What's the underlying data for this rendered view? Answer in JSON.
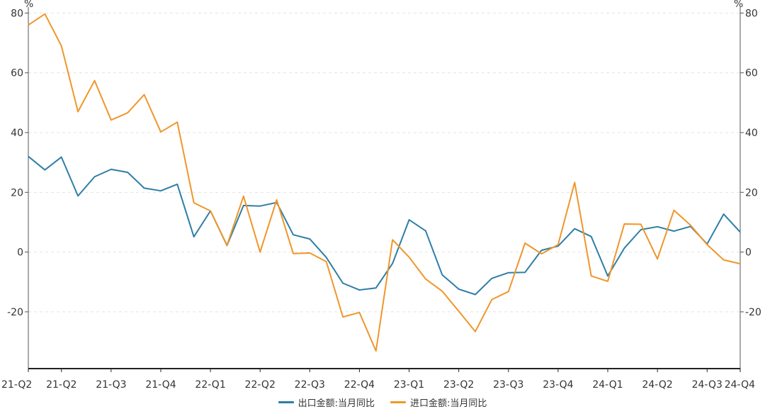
{
  "chart_data": {
    "type": "line",
    "unit_left": "%",
    "unit_right": "%",
    "x_tick_labels": [
      "21-Q2",
      "21-Q2",
      "21-Q3",
      "21-Q4",
      "22-Q1",
      "22-Q2",
      "22-Q3",
      "22-Q4",
      "23-Q1",
      "23-Q2",
      "23-Q3",
      "23-Q4",
      "24-Q1",
      "24-Q2",
      "24-Q3",
      "24-Q4"
    ],
    "x_tick_index": [
      0,
      2,
      5,
      8,
      11,
      14,
      17,
      20,
      23,
      26,
      29,
      32,
      35,
      38,
      41,
      43
    ],
    "ylim": [
      -39,
      82
    ],
    "y_ticks": [
      -20,
      0,
      20,
      40,
      60,
      80
    ],
    "grid": true,
    "legend_position": "bottom",
    "series": [
      {
        "name": "出口金额:当月同比",
        "color": "#2e7ea6",
        "values": [
          32.0,
          27.5,
          31.8,
          18.8,
          25.2,
          27.7,
          26.7,
          21.4,
          20.5,
          22.7,
          5.1,
          13.8,
          2.2,
          15.6,
          15.4,
          16.6,
          5.8,
          4.4,
          -1.8,
          -10.4,
          -12.7,
          -12.0,
          -3.8,
          10.8,
          7.1,
          -7.6,
          -12.4,
          -14.2,
          -8.8,
          -6.9,
          -6.8,
          0.6,
          2.0,
          7.8,
          5.2,
          -8.0,
          1.3,
          7.5,
          8.5,
          7.0,
          8.6,
          2.7,
          12.7,
          6.7
        ]
      },
      {
        "name": "进口金额:当月同比",
        "color": "#f0962a",
        "values": [
          76.0,
          79.7,
          69.0,
          47.0,
          57.4,
          44.2,
          46.6,
          52.7,
          40.2,
          43.5,
          16.5,
          13.8,
          2.3,
          18.7,
          0.0,
          17.5,
          -0.5,
          -0.3,
          -3.2,
          -21.7,
          -20.2,
          -33.1,
          4.1,
          -1.7,
          -9.0,
          -13.1,
          -19.8,
          -26.6,
          -15.9,
          -13.2,
          3.0,
          -0.6,
          2.5,
          23.3,
          -8.0,
          -9.8,
          9.4,
          9.3,
          -2.3,
          14.0,
          9.0,
          2.5,
          -2.6,
          -3.9
        ]
      }
    ]
  }
}
